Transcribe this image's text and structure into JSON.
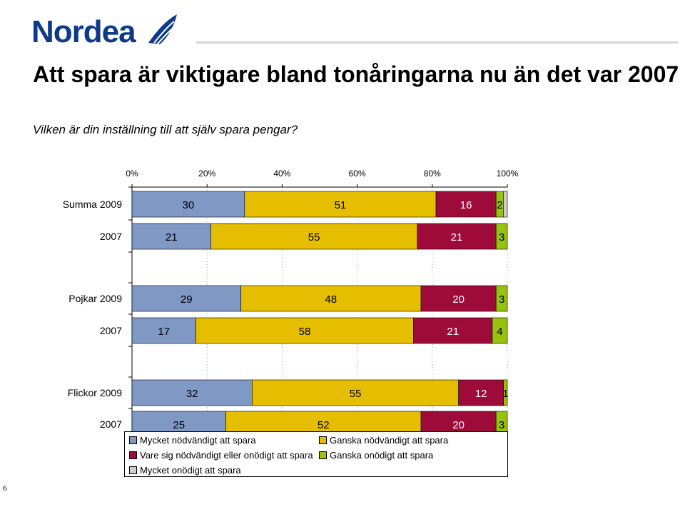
{
  "header": {
    "logo_text": "Nordea",
    "title": "Att spara är viktigare bland tonåringarna nu än det var 2007",
    "subtitle": "Vilken är din inställning till att själv spara pengar?",
    "page_number": "6"
  },
  "colors": {
    "brand": "#0e3a8a",
    "series": [
      "#7f98c4",
      "#e5be00",
      "#9e0b3a",
      "#99c20e",
      "#cfcfcf"
    ]
  },
  "chart_data": {
    "type": "bar",
    "orientation": "horizontal",
    "stacked": true,
    "xlim": [
      0,
      100
    ],
    "x_ticks": [
      "0%",
      "20%",
      "40%",
      "60%",
      "80%",
      "100%"
    ],
    "categories": [
      "Summa 2009",
      "2007",
      "Pojkar 2009",
      "2007",
      "Flickor 2009",
      "2007"
    ],
    "series": [
      {
        "name": "Mycket nödvändigt att spara",
        "values": [
          30,
          21,
          29,
          17,
          32,
          25
        ]
      },
      {
        "name": "Ganska nödvändigt att spara",
        "values": [
          51,
          55,
          48,
          58,
          55,
          52
        ]
      },
      {
        "name": "Vare sig nödvändigt eller onödigt att spara",
        "values": [
          16,
          21,
          20,
          21,
          12,
          20
        ]
      },
      {
        "name": "Ganska onödigt att spara",
        "values": [
          2,
          3,
          3,
          4,
          1,
          3
        ]
      },
      {
        "name": "Mycket onödigt att spara",
        "values": [
          1,
          0,
          0,
          0,
          0,
          0
        ]
      }
    ],
    "data_labels": [
      [
        "30",
        "51",
        "16",
        "2",
        ""
      ],
      [
        "21",
        "55",
        "21",
        "3",
        ""
      ],
      [
        "29",
        "48",
        "20",
        "3",
        ""
      ],
      [
        "17",
        "58",
        "21",
        "4",
        ""
      ],
      [
        "32",
        "55",
        "12",
        "1",
        ""
      ],
      [
        "25",
        "52",
        "20",
        "3",
        ""
      ]
    ],
    "legend_position": "bottom"
  }
}
